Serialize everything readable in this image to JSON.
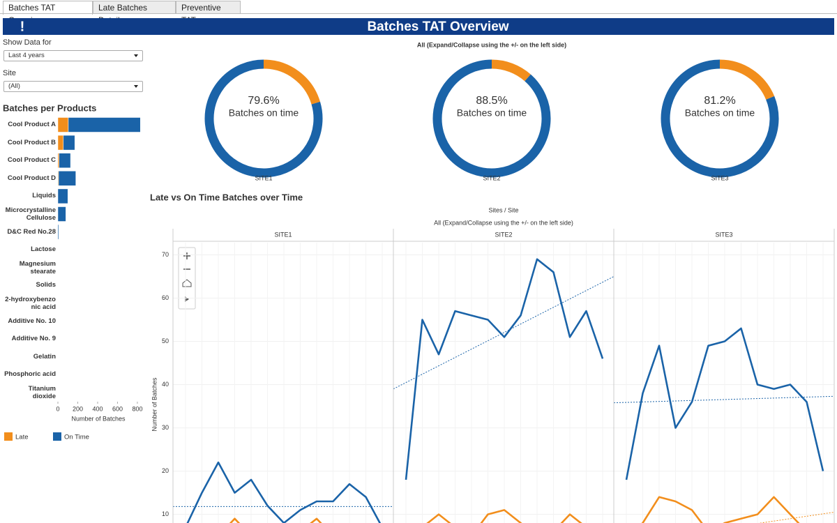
{
  "tabs": [
    "Batches TAT Overview",
    "Late Batches Details",
    "Preventive TAT"
  ],
  "header": {
    "icon": "!",
    "title": "Batches TAT Overview"
  },
  "filters": [
    {
      "label": "Show Data for",
      "value": "Last 4 years"
    },
    {
      "label": "Site",
      "value": "(All)"
    }
  ],
  "chart_data": [
    {
      "type": "bar",
      "orientation": "horizontal",
      "stacked": true,
      "title": "Batches per Products",
      "x_label": "Number of Batches",
      "categories": [
        "Cool Product A",
        "Cool Product B",
        "Cool Product C",
        "Cool Product D",
        "Liquids",
        "Microcrystalline\nCellulose",
        "D&C Red No.28",
        "Lactose",
        "Magnesium\nstearate",
        "Solids",
        "2-hydroxybenzo\nnic acid",
        "Additive No. 10",
        "Additive No. 9",
        "Gelatin",
        "Phosphoric acid",
        "Titanium\ndioxide"
      ],
      "series": [
        {
          "name": "Late",
          "color": "#f28e1c",
          "values": [
            105,
            55,
            12,
            7,
            0,
            0,
            0,
            0,
            0,
            0,
            0,
            0,
            0,
            0,
            0,
            0
          ]
        },
        {
          "name": "On Time",
          "color": "#1a63a8",
          "values": [
            725,
            115,
            115,
            173,
            100,
            80,
            8,
            0,
            0,
            0,
            0,
            0,
            0,
            0,
            0,
            0
          ]
        }
      ],
      "xlim": [
        0,
        860
      ],
      "xticks": [
        0,
        200,
        400,
        600,
        800
      ],
      "legend": "bottom-left"
    },
    {
      "type": "donut",
      "subtitle": "All (Expand/Collapse using the +/- on the left side)",
      "colors": [
        "#1a63a8",
        "#f28e1c"
      ],
      "panels": [
        {
          "name": "SITE1",
          "values": [
            79.6,
            20.4
          ],
          "value_labels": [
            "79.6%",
            null
          ],
          "center_label": "Batches on time"
        },
        {
          "name": "SITE2",
          "values": [
            88.5,
            11.5
          ],
          "value_labels": [
            "88.5%",
            null
          ],
          "center_label": "Batches on time"
        },
        {
          "name": "SITE3",
          "values": [
            81.2,
            18.8
          ],
          "value_labels": [
            "81.2%",
            null
          ],
          "center_label": "Batches on time"
        }
      ]
    },
    {
      "type": "line",
      "title": "Late vs On Time Batches over Time",
      "header": "Sites  /  Site",
      "subtitle": "All (Expand/Collapse using the +/- on the left side)",
      "y_label": "Number of Batches",
      "categories": [
        null,
        null,
        null,
        null,
        null,
        null,
        null,
        null,
        null,
        null,
        null,
        null,
        null
      ],
      "ylim": [
        8,
        72.5
      ],
      "yticks": [
        10,
        20,
        30,
        40,
        50,
        60,
        70
      ],
      "grid": true,
      "panels": [
        {
          "name": "SITE1",
          "series": [
            {
              "color": "#1a63a8",
              "values": [
                7,
                15,
                22,
                15,
                18,
                12,
                8,
                11,
                13,
                13,
                17,
                14,
                7
              ],
              "trend": [
                11.8,
                11.8
              ]
            },
            {
              "color": "#f28e1c",
              "values": [
                4,
                6,
                5,
                9,
                5,
                5,
                4,
                6,
                9,
                5,
                7,
                5,
                4
              ]
            }
          ]
        },
        {
          "name": "SITE2",
          "series": [
            {
              "color": "#1a63a8",
              "values": [
                18,
                55,
                47,
                57,
                56,
                55,
                51,
                56,
                69,
                66,
                51,
                57,
                46
              ],
              "trend": [
                39,
                65
              ]
            },
            {
              "color": "#f28e1c",
              "values": [
                5,
                7,
                10,
                7,
                5,
                10,
                11,
                8,
                5,
                6,
                10,
                7,
                6
              ]
            }
          ]
        },
        {
          "name": "SITE3",
          "series": [
            {
              "color": "#1a63a8",
              "values": [
                18,
                38,
                49,
                30,
                36,
                49,
                50,
                53,
                40,
                39,
                40,
                36,
                20
              ],
              "trend": [
                35.8,
                37.3
              ]
            },
            {
              "color": "#f28e1c",
              "values": [
                5,
                8,
                14,
                13,
                11,
                6,
                8,
                9,
                10,
                14,
                10,
                6,
                4
              ],
              "trend": [
                3,
                10.5
              ]
            }
          ]
        }
      ]
    }
  ]
}
